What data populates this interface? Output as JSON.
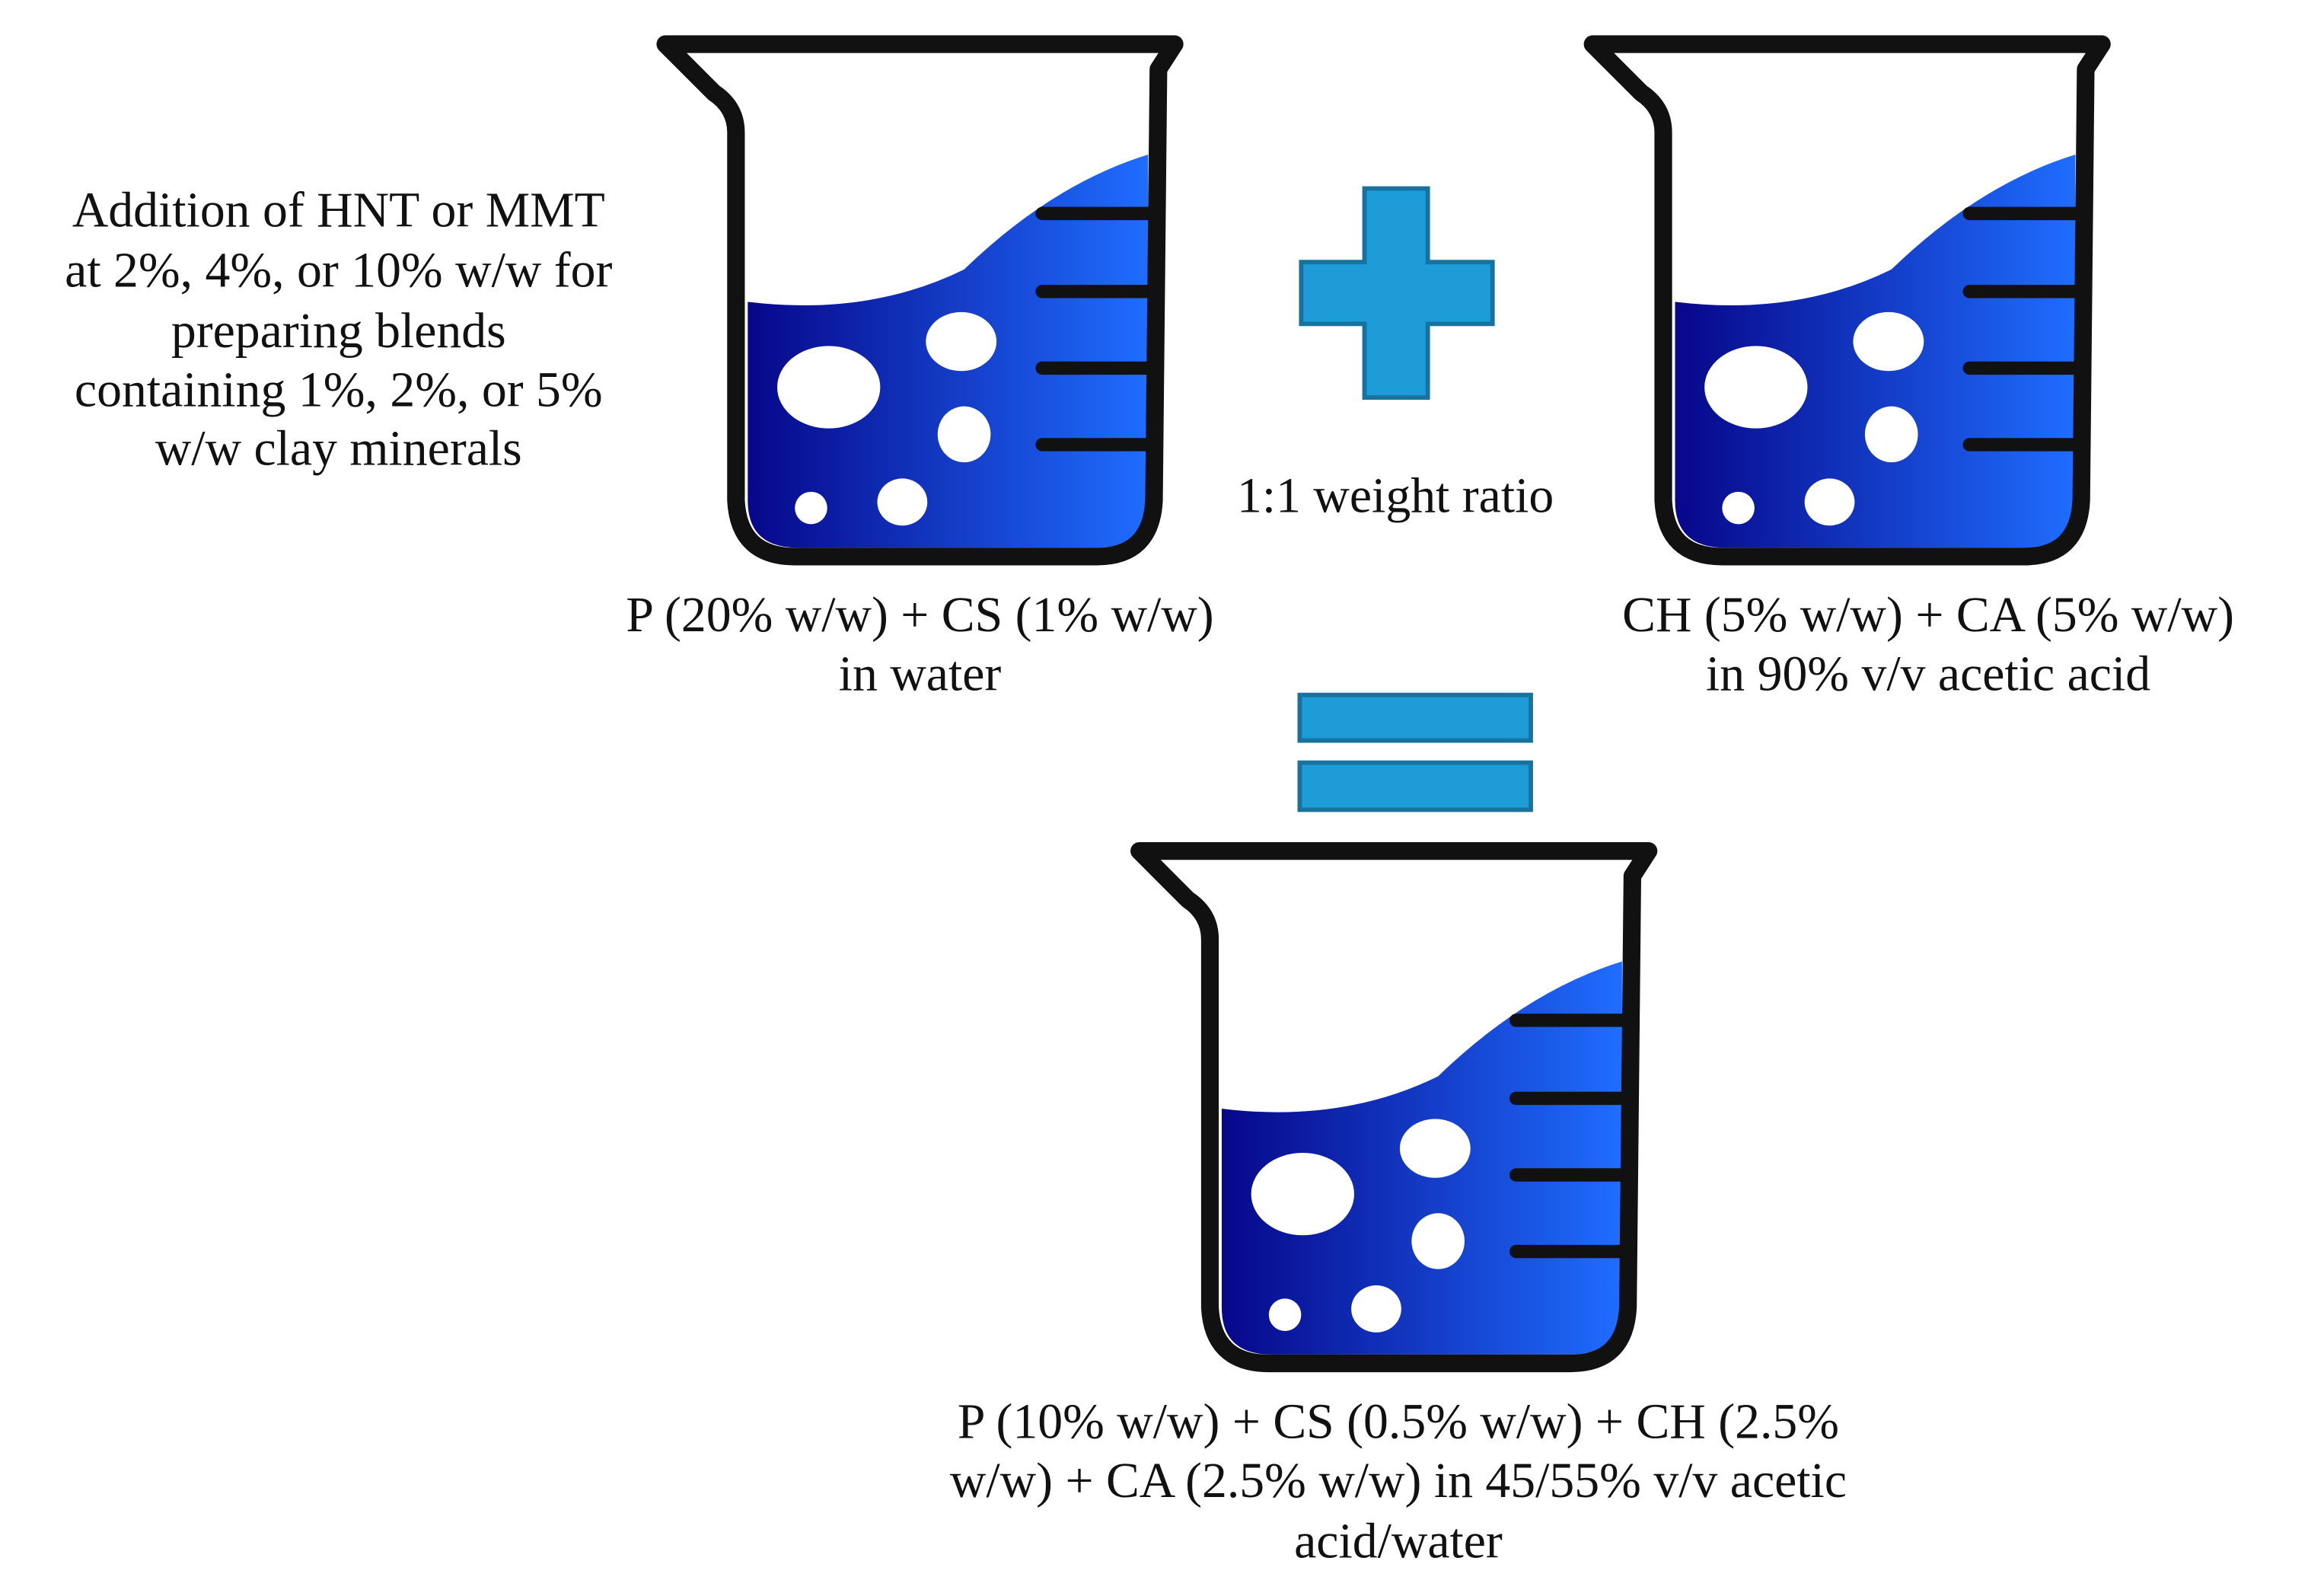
{
  "note": {
    "lines": [
      "Addition of HNT or MMT",
      "at 2%, 4%, or 10% w/w for",
      "preparing blends",
      "containing 1%, 2%, or 5%",
      "w/w clay minerals"
    ]
  },
  "ratio_label": "1:1 weight ratio",
  "beakers": [
    {
      "label_lines": [
        "P (20% w/w) + CS (1% w/w)",
        "in water"
      ]
    },
    {
      "label_lines": [
        "CH (5% w/w) + CA (5% w/w)",
        "in 90% v/v acetic acid"
      ]
    },
    {
      "label_lines": [
        "P (10% w/w) + CS (0.5% w/w) + CH (2.5%",
        "w/w) + CA (2.5% w/w) in 45/55% v/v acetic",
        "acid/water"
      ]
    }
  ]
}
